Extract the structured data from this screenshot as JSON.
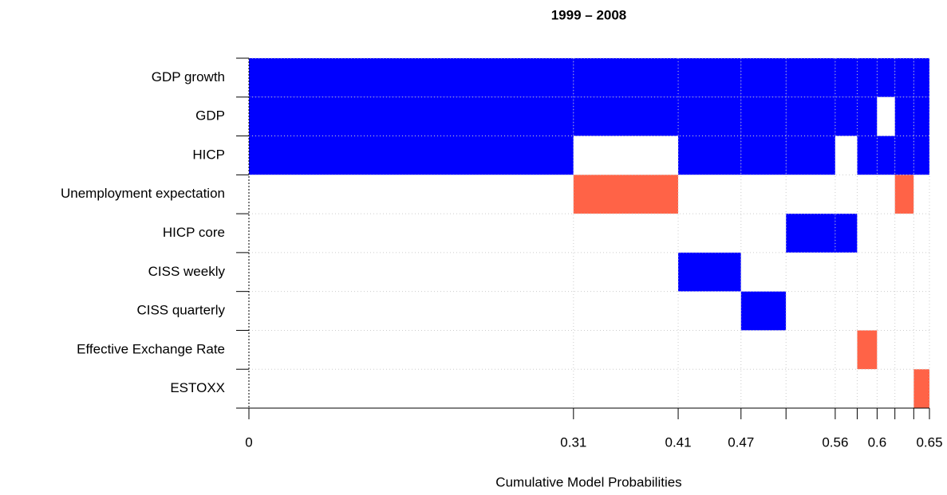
{
  "chart_data": {
    "type": "model-inclusion",
    "title": "1999 – 2008",
    "xlabel": "Cumulative Model Probabilities",
    "xlim": [
      0,
      0.65
    ],
    "xticks": [
      0,
      0.31,
      0.41,
      0.47,
      0.56,
      0.6,
      0.65
    ],
    "model_edges": [
      0,
      0.31,
      0.41,
      0.47,
      0.513,
      0.56,
      0.581,
      0.6,
      0.617,
      0.635,
      0.65
    ],
    "positive_color": "#0000ff",
    "negative_color": "#ff6347",
    "grid": true,
    "series": [
      {
        "name": "GDP growth",
        "values": [
          1,
          1,
          1,
          1,
          1,
          1,
          1,
          1,
          1,
          1
        ]
      },
      {
        "name": "GDP",
        "values": [
          1,
          1,
          1,
          1,
          1,
          1,
          1,
          0,
          1,
          1
        ]
      },
      {
        "name": "HICP",
        "values": [
          1,
          0,
          1,
          1,
          1,
          0,
          1,
          1,
          1,
          1
        ]
      },
      {
        "name": "Unemployment expectation",
        "values": [
          0,
          -1,
          0,
          0,
          0,
          0,
          0,
          0,
          -1,
          0
        ]
      },
      {
        "name": "HICP core",
        "values": [
          0,
          0,
          0,
          0,
          1,
          1,
          0,
          0,
          0,
          0
        ]
      },
      {
        "name": "CISS weekly",
        "values": [
          0,
          0,
          1,
          0,
          0,
          0,
          0,
          0,
          0,
          0
        ]
      },
      {
        "name": "CISS quarterly",
        "values": [
          0,
          0,
          0,
          1,
          0,
          0,
          0,
          0,
          0,
          0
        ]
      },
      {
        "name": "Effective Exchange Rate",
        "values": [
          0,
          0,
          0,
          0,
          0,
          0,
          -1,
          0,
          0,
          0
        ]
      },
      {
        "name": "ESTOXX",
        "values": [
          0,
          0,
          0,
          0,
          0,
          0,
          0,
          0,
          0,
          -1
        ]
      }
    ]
  }
}
